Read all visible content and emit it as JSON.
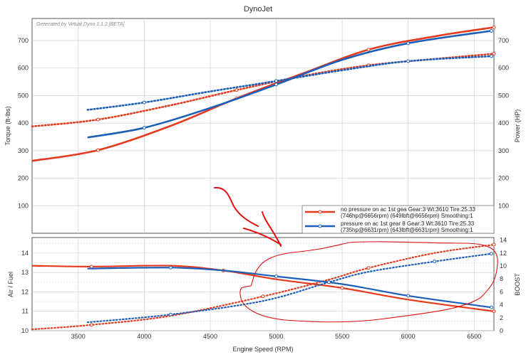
{
  "chart_data": {
    "type": "line",
    "title": "DynoJet",
    "generator": "Generated by Virtual Dyno 1.1.2 [BETA]",
    "xlabel": "Engine Speed (RPM)",
    "xlim": [
      3150,
      6650
    ],
    "x_ticks": [
      3500,
      4000,
      4500,
      5000,
      5500,
      6000,
      6500
    ],
    "top": {
      "ylabel_left": "Torque (ft-lbs)",
      "ylabel_right": "Power (HP)",
      "ylim": [
        0,
        780
      ],
      "y_ticks": [
        100,
        200,
        300,
        400,
        500,
        600,
        700
      ]
    },
    "bottom": {
      "ylabel_left": "Air / Fuel",
      "ylabel_right": "BOOST",
      "ylim_left": [
        10,
        14.8
      ],
      "y_ticks_left": [
        10,
        11,
        12,
        13,
        14
      ],
      "ylim_right": [
        0,
        14.4
      ],
      "y_ticks_right": [
        0,
        2,
        4,
        6,
        8,
        10,
        12,
        14
      ]
    },
    "series": [
      {
        "key": "red",
        "color": "#e53a1e",
        "legend_line1": "no pressure on ac 1st gea Gear:3 Wt:3610 Tire:25.33",
        "legend_line2": "(746hp@6656rpm) (649lbft@6656rpm) Smoothing:1",
        "power": [
          [
            3150,
            263
          ],
          [
            3650,
            302
          ],
          [
            4200,
            390
          ],
          [
            4700,
            490
          ],
          [
            5200,
            580
          ],
          [
            5700,
            667
          ],
          [
            6200,
            715
          ],
          [
            6650,
            748
          ]
        ],
        "torque": [
          [
            3150,
            388
          ],
          [
            3650,
            413
          ],
          [
            4200,
            465
          ],
          [
            4700,
            520
          ],
          [
            5200,
            571
          ],
          [
            5700,
            610
          ],
          [
            6200,
            633
          ],
          [
            6650,
            652
          ]
        ],
        "afr": [
          [
            3150,
            13.35
          ],
          [
            3600,
            13.3
          ],
          [
            4200,
            13.35
          ],
          [
            4600,
            13.1
          ],
          [
            5000,
            12.65
          ],
          [
            5500,
            12.2
          ],
          [
            6000,
            11.6
          ],
          [
            6650,
            11.0
          ]
        ],
        "boost": [
          [
            3150,
            0.2
          ],
          [
            3600,
            0.9
          ],
          [
            4200,
            2.3
          ],
          [
            4900,
            5.3
          ],
          [
            5400,
            7.9
          ],
          [
            5700,
            9.7
          ],
          [
            6200,
            12.0
          ],
          [
            6650,
            13.3
          ]
        ]
      },
      {
        "key": "blue",
        "color": "#1d5fb8",
        "legend_line1": "pressure on ac 1st gear 8 Gear:3 Wt:3610 Tire:25.33",
        "legend_line2": "(735hp@6631rpm) (643lbft@6631rpm) Smoothing:1",
        "power": [
          [
            3570,
            348
          ],
          [
            4000,
            383
          ],
          [
            4500,
            455
          ],
          [
            5000,
            540
          ],
          [
            5500,
            630
          ],
          [
            6000,
            690
          ],
          [
            6631,
            735
          ]
        ],
        "torque": [
          [
            3570,
            448
          ],
          [
            4000,
            475
          ],
          [
            4500,
            515
          ],
          [
            5000,
            553
          ],
          [
            5500,
            592
          ],
          [
            6000,
            625
          ],
          [
            6631,
            643
          ]
        ],
        "afr": [
          [
            3570,
            13.2
          ],
          [
            4200,
            13.25
          ],
          [
            4600,
            13.1
          ],
          [
            5000,
            12.8
          ],
          [
            5500,
            12.4
          ],
          [
            6000,
            11.8
          ],
          [
            6631,
            11.2
          ]
        ],
        "boost": [
          [
            3570,
            1.3
          ],
          [
            4200,
            2.5
          ],
          [
            4900,
            4.6
          ],
          [
            5400,
            7.5
          ],
          [
            5700,
            9.1
          ],
          [
            6200,
            10.7
          ],
          [
            6631,
            11.9
          ]
        ]
      }
    ]
  }
}
